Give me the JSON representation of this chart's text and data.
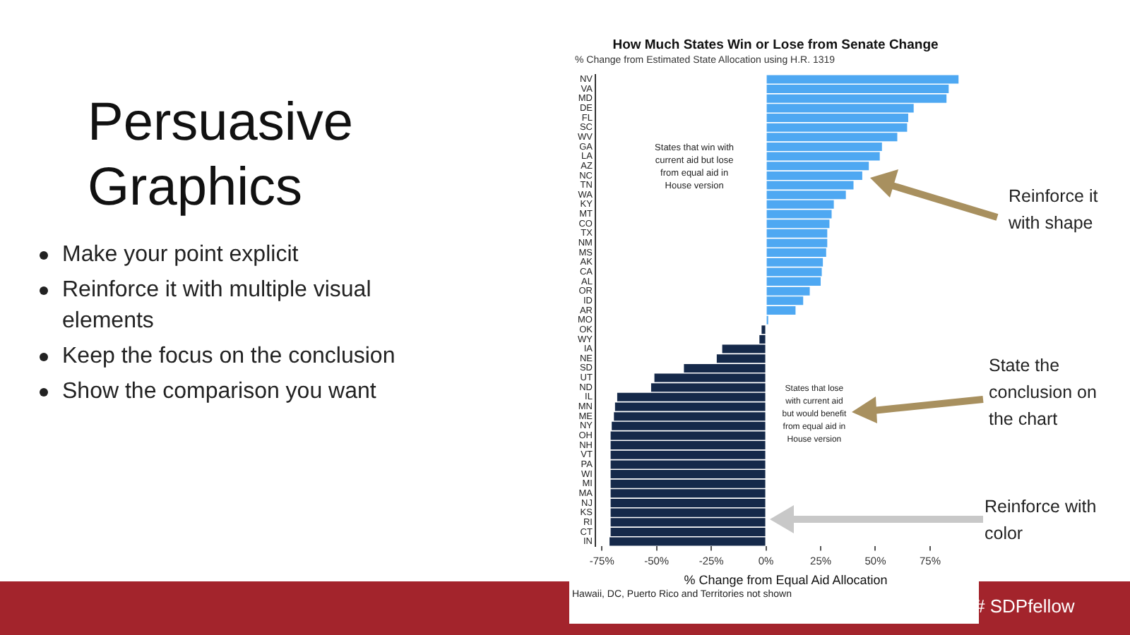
{
  "chart_data": {
    "type": "bar",
    "orientation": "horizontal",
    "title": "How Much States Win or Lose from Senate Change",
    "subtitle": "% Change from Estimated State Allocation using H.R. 1319",
    "xlabel": "% Change from Equal Aid Allocation",
    "categories": [
      "NV",
      "VA",
      "MD",
      "DE",
      "FL",
      "SC",
      "WV",
      "GA",
      "LA",
      "AZ",
      "NC",
      "TN",
      "WA",
      "KY",
      "MT",
      "CO",
      "TX",
      "NM",
      "MS",
      "AK",
      "CA",
      "AL",
      "OR",
      "ID",
      "AR",
      "MO",
      "OK",
      "WY",
      "IA",
      "NE",
      "SD",
      "UT",
      "ND",
      "IL",
      "MN",
      "ME",
      "NY",
      "OH",
      "NH",
      "VT",
      "PA",
      "WI",
      "MI",
      "MA",
      "NJ",
      "KS",
      "RI",
      "CT",
      "IN"
    ],
    "values": [
      88,
      83.5,
      82.5,
      67.5,
      65,
      64.5,
      60,
      53,
      52,
      47,
      44,
      40,
      36.5,
      31,
      30,
      29,
      28,
      28,
      27.5,
      26,
      25.5,
      25,
      20,
      17,
      13.5,
      1,
      -2,
      -3,
      -20,
      -22.5,
      -37.5,
      -51,
      -52.5,
      -68,
      -69,
      -69.5,
      -70.5,
      -71,
      -71,
      -71,
      -71,
      -71,
      -71,
      -71,
      -71,
      -71,
      -71,
      -71,
      -71.5
    ],
    "colors": [
      "#4ea8f2",
      "#4ea8f2",
      "#4ea8f2",
      "#4ea8f2",
      "#4ea8f2",
      "#4ea8f2",
      "#4ea8f2",
      "#4ea8f2",
      "#4ea8f2",
      "#4ea8f2",
      "#4ea8f2",
      "#4ea8f2",
      "#4ea8f2",
      "#4ea8f2",
      "#4ea8f2",
      "#4ea8f2",
      "#4ea8f2",
      "#4ea8f2",
      "#4ea8f2",
      "#4ea8f2",
      "#4ea8f2",
      "#4ea8f2",
      "#4ea8f2",
      "#4ea8f2",
      "#4ea8f2",
      "#4ea8f2",
      "#15294a",
      "#15294a",
      "#15294a",
      "#15294a",
      "#15294a",
      "#15294a",
      "#15294a",
      "#15294a",
      "#15294a",
      "#15294a",
      "#15294a",
      "#15294a",
      "#15294a",
      "#15294a",
      "#15294a",
      "#15294a",
      "#15294a",
      "#15294a",
      "#15294a",
      "#15294a",
      "#15294a",
      "#15294a",
      "#15294a"
    ],
    "xlim": [
      -78,
      96
    ],
    "xticks": [
      {
        "value": -75,
        "label": "-75%"
      },
      {
        "value": -50,
        "label": "-50%"
      },
      {
        "value": -25,
        "label": "-25%"
      },
      {
        "value": 0,
        "label": "0%"
      },
      {
        "value": 25,
        "label": "25%"
      },
      {
        "value": 50,
        "label": "50%"
      },
      {
        "value": 75,
        "label": "75%"
      }
    ],
    "grid": false,
    "legend": false,
    "annotations": [
      "States that win with current aid but lose from equal aid in House version",
      "States that lose with current aid but would benefit from equal aid in House version",
      "Hawaii, DC, Puerto Rico and Territories not shown",
      "Persuasive Graphics",
      "Make your point explicit",
      "Reinforce it with multiple visual elements",
      "Keep the focus on the conclusion",
      "Show the comparison you want",
      "Reinforce it with shape",
      "State the conclusion on the chart",
      "Reinforce with color",
      "# SDPfellow"
    ]
  }
}
